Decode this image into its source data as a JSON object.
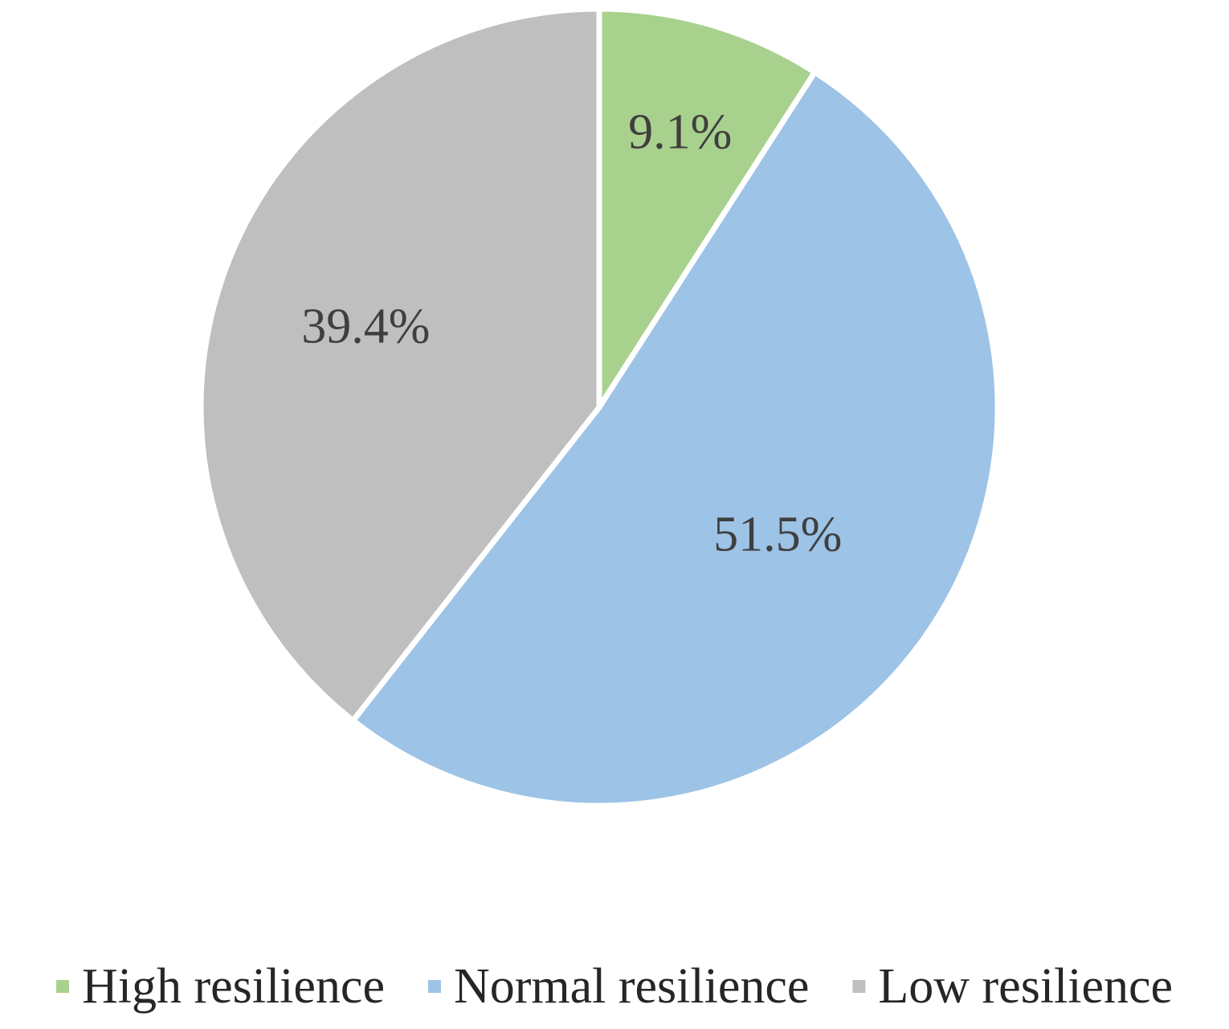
{
  "chart_data": {
    "type": "pie",
    "title": "",
    "start_angle_deg": 0,
    "direction": "clockwise",
    "legend_position": "bottom",
    "slices": [
      {
        "name": "High resilience",
        "value": 9.1,
        "label": "9.1%",
        "color": "#a9d18e"
      },
      {
        "name": "Normal resilience",
        "value": 51.5,
        "label": "51.5%",
        "color": "#9dc3e6"
      },
      {
        "name": "Low resilience",
        "value": 39.4,
        "label": "39.4%",
        "color": "#bfbfbf"
      }
    ]
  }
}
